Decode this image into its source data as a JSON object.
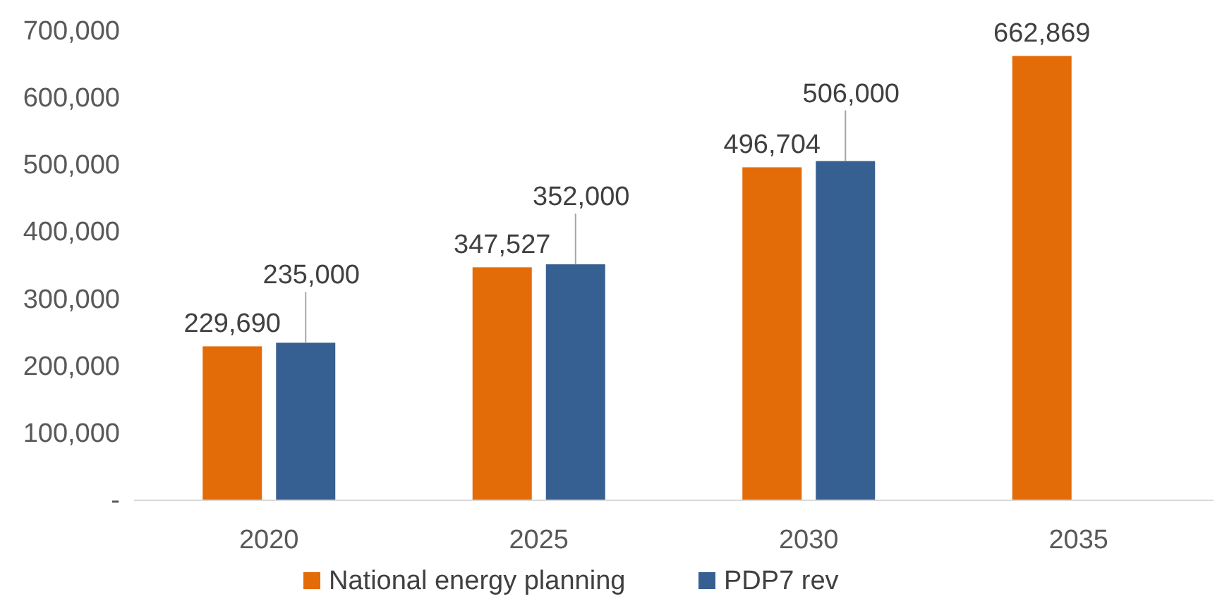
{
  "chart_data": {
    "type": "bar",
    "categories": [
      "2020",
      "2025",
      "2030",
      "2035"
    ],
    "series": [
      {
        "name": "National energy planning",
        "color": "#e36c09",
        "values": [
          229690,
          347527,
          496704,
          662869
        ],
        "value_labels": [
          "229,690",
          "347,527",
          "496,704",
          "662,869"
        ]
      },
      {
        "name": "PDP7 rev",
        "color": "#376092",
        "values": [
          235000,
          352000,
          506000,
          null
        ],
        "value_labels": [
          "235,000",
          "352,000",
          "506,000",
          null
        ]
      }
    ],
    "ylim": [
      0,
      700000
    ],
    "yticks": [
      {
        "value": 0,
        "label": "-"
      },
      {
        "value": 100000,
        "label": "100,000"
      },
      {
        "value": 200000,
        "label": "200,000"
      },
      {
        "value": 300000,
        "label": "300,000"
      },
      {
        "value": 400000,
        "label": "400,000"
      },
      {
        "value": 500000,
        "label": "500,000"
      },
      {
        "value": 600000,
        "label": "600,000"
      },
      {
        "value": 700000,
        "label": "700,000"
      }
    ],
    "legend": "bottom",
    "grid": false
  }
}
